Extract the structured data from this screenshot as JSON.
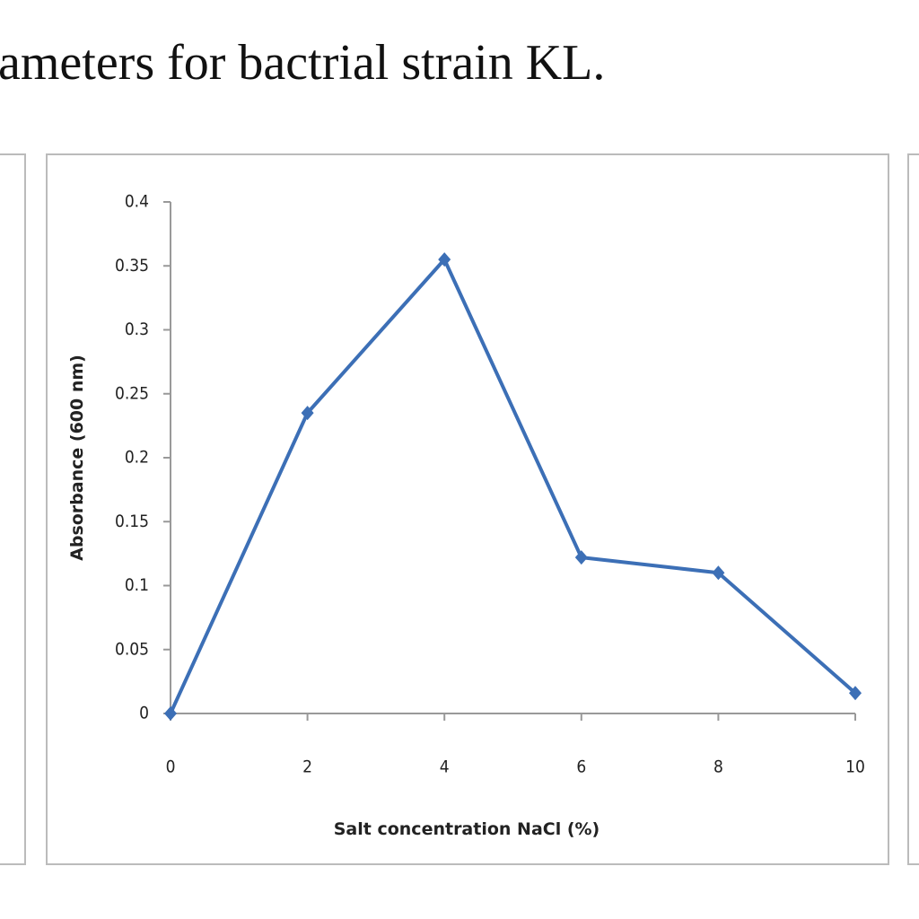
{
  "chart_data": {
    "type": "line",
    "title": "ameters for bactrial strain KL.",
    "x_label": "Salt concentration NaCl (%)",
    "y_label": "Absorbance (600 nm)",
    "x": [
      0,
      2,
      4,
      6,
      8,
      10
    ],
    "series": [
      {
        "name": "Absorbance",
        "color": "#3c6fb6",
        "values": [
          0,
          0.235,
          0.355,
          0.122,
          0.11,
          0.016
        ]
      }
    ],
    "xlim": [
      0,
      10
    ],
    "xticks": [
      0,
      2,
      4,
      6,
      8,
      10
    ],
    "ylim": [
      0,
      0.4
    ],
    "yticks": [
      0,
      0.05,
      0.1,
      0.15,
      0.2,
      0.25,
      0.3,
      0.35,
      0.4
    ],
    "grid": false
  }
}
